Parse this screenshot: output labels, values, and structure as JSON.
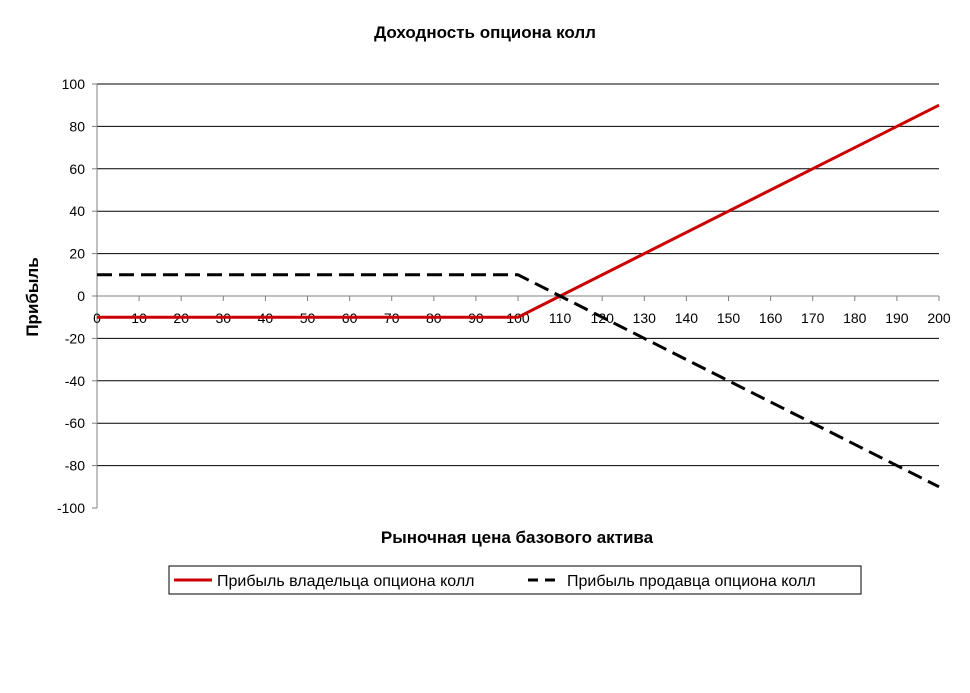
{
  "chart_data": {
    "type": "line",
    "title": "Доходность опциона колл",
    "xlabel": "Рыночная цена базового актива",
    "ylabel": "Прибыль",
    "xlim": [
      0,
      200
    ],
    "ylim": [
      -100,
      100
    ],
    "x_ticks": [
      0,
      10,
      20,
      30,
      40,
      50,
      60,
      70,
      80,
      90,
      100,
      110,
      120,
      130,
      140,
      150,
      160,
      170,
      180,
      190,
      200
    ],
    "y_ticks": [
      100,
      80,
      60,
      40,
      20,
      0,
      -20,
      -40,
      -60,
      -80,
      -100
    ],
    "grid": "horizontal",
    "legend_position": "bottom",
    "series": [
      {
        "name": "Прибыль владельца опциона колл",
        "color": "#cc0000",
        "style": "solid",
        "x": [
          0,
          100,
          200
        ],
        "y": [
          -10,
          -10,
          90
        ]
      },
      {
        "name": "Прибыль продавца опциона колл",
        "color": "#000000",
        "style": "dashed",
        "x": [
          0,
          100,
          200
        ],
        "y": [
          10,
          10,
          -90
        ]
      }
    ]
  }
}
